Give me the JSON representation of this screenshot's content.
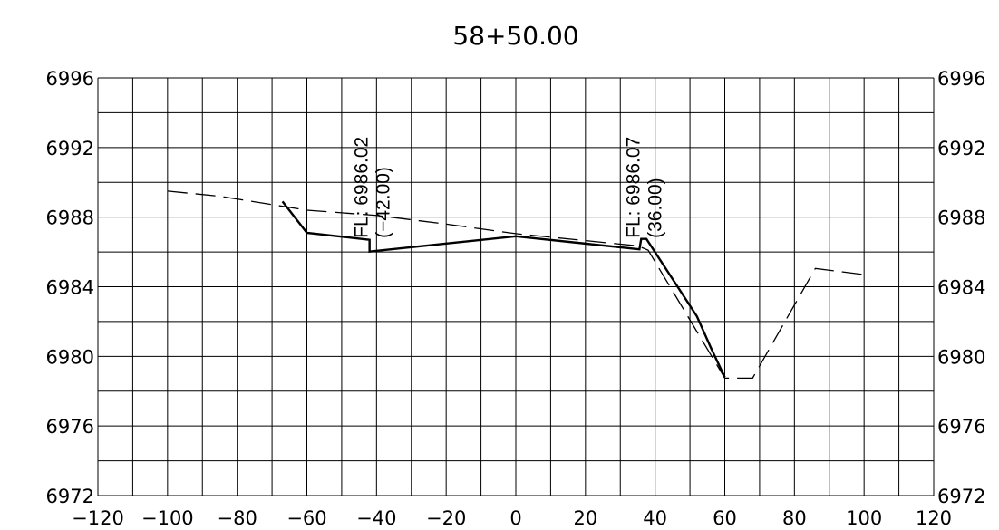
{
  "chart_data": {
    "type": "line",
    "title": "58+50.00",
    "xlabel": "",
    "ylabel": "",
    "xlim": [
      -120,
      120
    ],
    "ylim": [
      6972,
      6996
    ],
    "grid": true,
    "x_ticks": [
      -120,
      -100,
      -80,
      -60,
      -40,
      -20,
      0,
      20,
      40,
      60,
      80,
      100,
      120
    ],
    "x_tick_labels": [
      "−120",
      "−100",
      "−80",
      "−60",
      "−40",
      "−20",
      "0",
      "20",
      "40",
      "60",
      "80",
      "100",
      "120"
    ],
    "y_ticks": [
      6972,
      6976,
      6980,
      6984,
      6988,
      6992,
      6996
    ],
    "y_tick_labels": [
      "6972",
      "6976",
      "6980",
      "6984",
      "6988",
      "6992",
      "6996"
    ],
    "series": [
      {
        "style": "solid",
        "color": "#000000",
        "points": [
          [
            -67,
            6988.9
          ],
          [
            -60,
            6987.1
          ],
          [
            -42,
            6986.7
          ],
          [
            -42,
            6986.02
          ],
          [
            0,
            6986.9
          ],
          [
            35.5,
            6986.15
          ],
          [
            36,
            6986.75
          ],
          [
            37.5,
            6986.75
          ],
          [
            52,
            6982.3
          ],
          [
            56,
            6980.5
          ],
          [
            60,
            6978.8
          ]
        ]
      },
      {
        "style": "dashed",
        "color": "#000000",
        "points": [
          [
            -100,
            6989.5
          ],
          [
            -85,
            6989.2
          ],
          [
            -60,
            6988.4
          ],
          [
            -40,
            6988.1
          ],
          [
            -20,
            6987.6
          ],
          [
            0,
            6987.05
          ],
          [
            35,
            6986.35
          ],
          [
            38,
            6986.1
          ],
          [
            60,
            6978.75
          ],
          [
            68,
            6978.75
          ],
          [
            86,
            6985.05
          ],
          [
            100,
            6984.7
          ]
        ]
      }
    ],
    "annotations": [
      {
        "lines": [
          "FL: 6986.02",
          "(−42.00)"
        ],
        "x": -42,
        "y": 6986.02
      },
      {
        "lines": [
          "FL: 6986.07",
          "(36.00)"
        ],
        "x": 36,
        "y": 6986.07
      }
    ]
  }
}
